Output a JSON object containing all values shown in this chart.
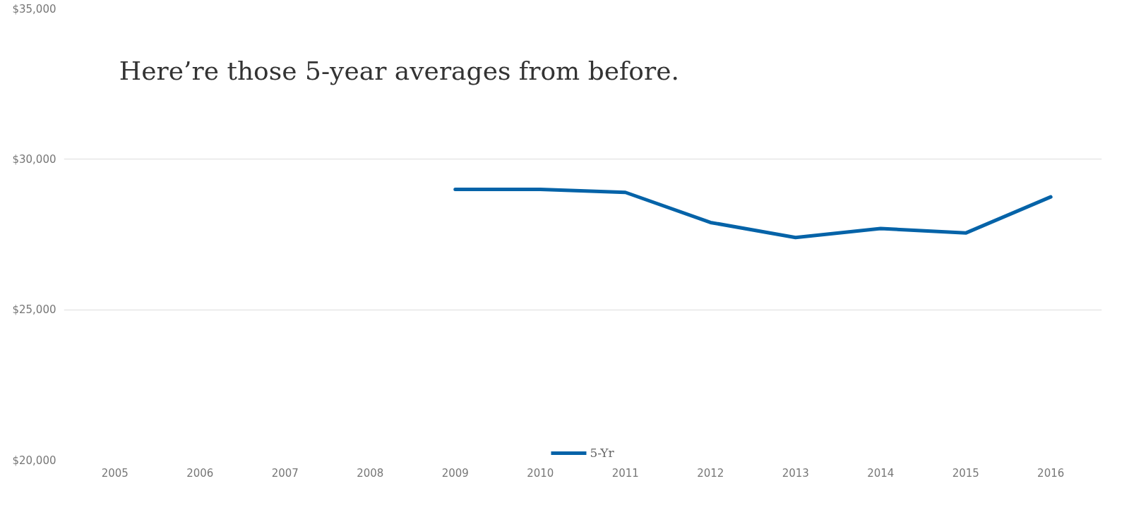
{
  "chart_data": {
    "type": "line",
    "title": "Here’re those 5-year averages from before.",
    "categories": [
      "2005",
      "2006",
      "2007",
      "2008",
      "2009",
      "2010",
      "2011",
      "2012",
      "2013",
      "2014",
      "2015",
      "2016"
    ],
    "series": [
      {
        "name": "5-Yr",
        "color": "#0563a8",
        "values": [
          null,
          null,
          null,
          null,
          29000,
          29000,
          28900,
          27900,
          27400,
          27700,
          27550,
          28750
        ]
      }
    ],
    "ylim": [
      20000,
      35000
    ],
    "yticks": [
      {
        "value": 20000,
        "label": "$20,000"
      },
      {
        "value": 25000,
        "label": "$25,000"
      },
      {
        "value": 30000,
        "label": "$30,000"
      },
      {
        "value": 35000,
        "label": "$35,000"
      }
    ],
    "grid": "y",
    "legend": "bottom",
    "marker": "none",
    "line_style": "solid"
  }
}
